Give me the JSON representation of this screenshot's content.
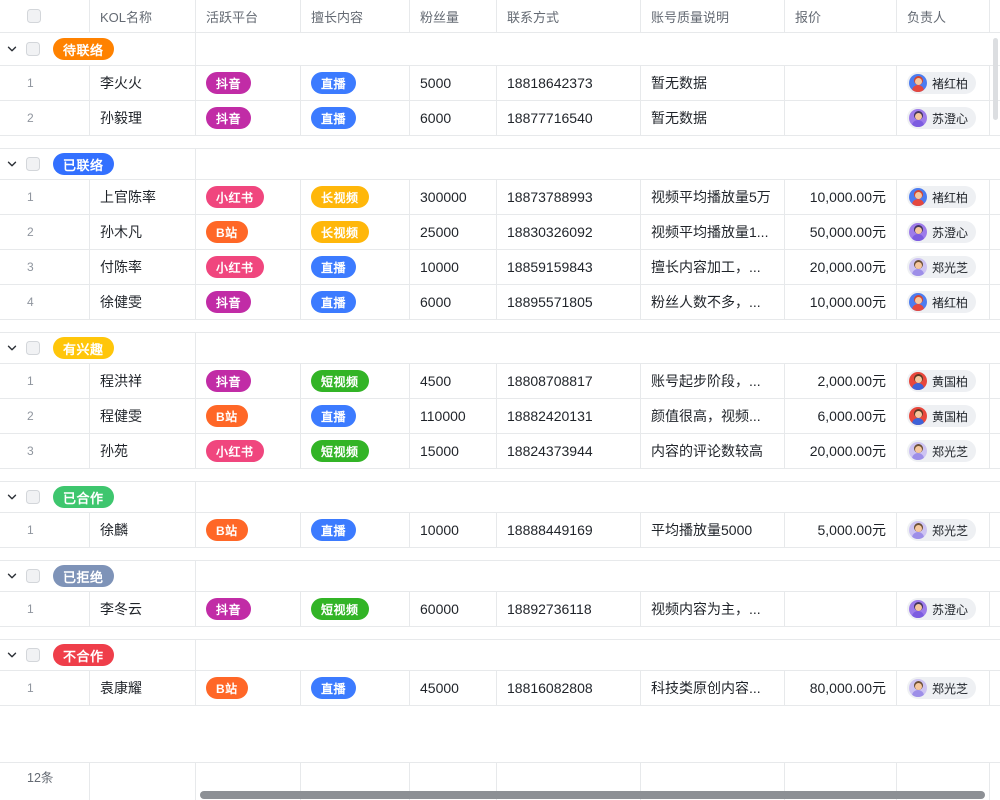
{
  "header": {
    "columns": [
      "KOL名称",
      "活跃平台",
      "擅长内容",
      "粉丝量",
      "联系方式",
      "账号质量说明",
      "报价",
      "负责人"
    ]
  },
  "platform_colors": {
    "抖音": "#C12CA6",
    "小红书": "#F0467E",
    "B站": "#FF6727"
  },
  "content_colors": {
    "直播": "#3C7BFF",
    "长视频": "#FFB70A",
    "短视频": "#32B426"
  },
  "owners": {
    "chu": {
      "name": "褚红柏",
      "bg": "#4C7CF0",
      "hair": "#D6452F",
      "shirt": "#E5483F"
    },
    "su": {
      "name": "苏澄心",
      "bg": "#9D7BEA",
      "hair": "#43355E",
      "shirt": "#7C5CE0"
    },
    "zheng": {
      "name": "郑光芝",
      "bg": "#CDC3F2",
      "hair": "#6B4F35",
      "shirt": "#9D8EE8"
    },
    "huang": {
      "name": "黄国柏",
      "bg": "#E8473C",
      "hair": "#5C3A24",
      "shirt": "#3E63D8"
    }
  },
  "groups": [
    {
      "label": "待联络",
      "color": "#FF8200",
      "rows": [
        {
          "num": "1",
          "name": "李火火",
          "platform": "抖音",
          "content": "直播",
          "fans": "5000",
          "phone": "18818642373",
          "quality": "暂无数据",
          "price": "",
          "owner": "chu"
        },
        {
          "num": "2",
          "name": "孙毅理",
          "platform": "抖音",
          "content": "直播",
          "fans": "6000",
          "phone": "18877716540",
          "quality": "暂无数据",
          "price": "",
          "owner": "su"
        }
      ]
    },
    {
      "label": "已联络",
      "color": "#3370FF",
      "rows": [
        {
          "num": "1",
          "name": "上官陈率",
          "platform": "小红书",
          "content": "长视频",
          "fans": "300000",
          "phone": "18873788993",
          "quality": "视频平均播放量5万",
          "price": "10,000.00元",
          "owner": "chu"
        },
        {
          "num": "2",
          "name": "孙木凡",
          "platform": "B站",
          "content": "长视频",
          "fans": "25000",
          "phone": "18830326092",
          "quality": "视频平均播放量1...",
          "price": "50,000.00元",
          "owner": "su"
        },
        {
          "num": "3",
          "name": "付陈率",
          "platform": "小红书",
          "content": "直播",
          "fans": "10000",
          "phone": "18859159843",
          "quality": "擅长内容加工，...",
          "price": "20,000.00元",
          "owner": "zheng"
        },
        {
          "num": "4",
          "name": "徐健雯",
          "platform": "抖音",
          "content": "直播",
          "fans": "6000",
          "phone": "18895571805",
          "quality": "粉丝人数不多，...",
          "price": "10,000.00元",
          "owner": "chu"
        }
      ]
    },
    {
      "label": "有兴趣",
      "color": "#FFC60A",
      "rows": [
        {
          "num": "1",
          "name": "程洪祥",
          "platform": "抖音",
          "content": "短视频",
          "fans": "4500",
          "phone": "18808708817",
          "quality": "账号起步阶段，...",
          "price": "2,000.00元",
          "owner": "huang"
        },
        {
          "num": "2",
          "name": "程健雯",
          "platform": "B站",
          "content": "直播",
          "fans": "110000",
          "phone": "18882420131",
          "quality": "颜值很高，视频...",
          "price": "6,000.00元",
          "owner": "huang"
        },
        {
          "num": "3",
          "name": "孙苑",
          "platform": "小红书",
          "content": "短视频",
          "fans": "15000",
          "phone": "18824373944",
          "quality": "内容的评论数较高",
          "price": "20,000.00元",
          "owner": "zheng"
        }
      ]
    },
    {
      "label": "已合作",
      "color": "#3EC66E",
      "rows": [
        {
          "num": "1",
          "name": "徐麟",
          "platform": "B站",
          "content": "直播",
          "fans": "10000",
          "phone": "18888449169",
          "quality": "平均播放量5000",
          "price": "5,000.00元",
          "owner": "zheng"
        }
      ]
    },
    {
      "label": "已拒绝",
      "color": "#7E93B8",
      "rows": [
        {
          "num": "1",
          "name": "李冬云",
          "platform": "抖音",
          "content": "短视频",
          "fans": "60000",
          "phone": "18892736118",
          "quality": "视频内容为主，...",
          "price": "",
          "owner": "su"
        }
      ]
    },
    {
      "label": "不合作",
      "color": "#EF3E4A",
      "rows": [
        {
          "num": "1",
          "name": "袁康耀",
          "platform": "B站",
          "content": "直播",
          "fans": "45000",
          "phone": "18816082808",
          "quality": "科技类原创内容...",
          "price": "80,000.00元",
          "owner": "zheng"
        }
      ]
    }
  ],
  "footer": {
    "count_label": "12条"
  }
}
